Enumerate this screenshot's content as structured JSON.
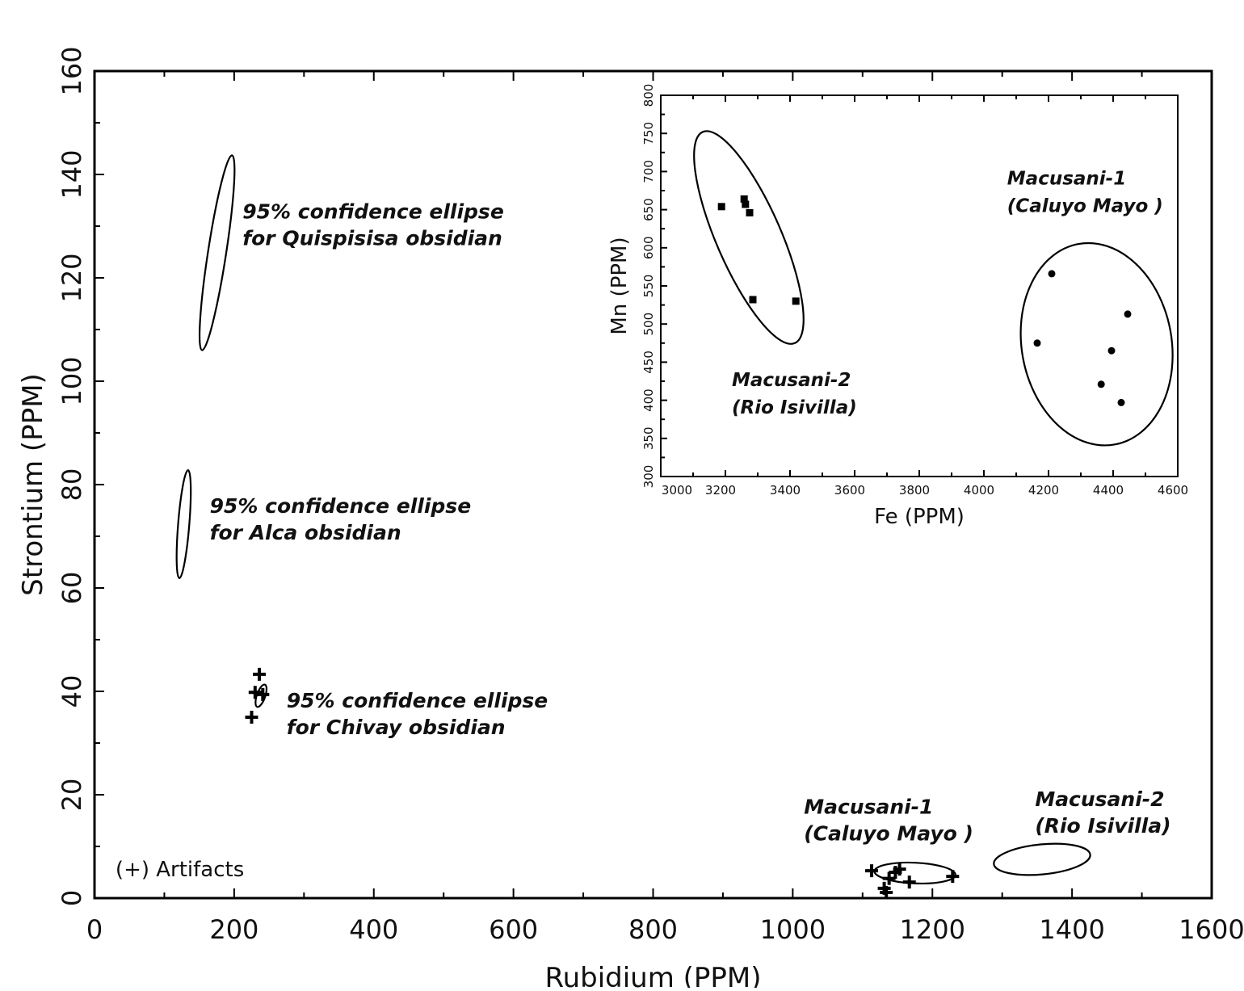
{
  "chart_data": [
    {
      "type": "scatter",
      "title": "",
      "xlabel": "Rubidium (PPM)",
      "ylabel": "Strontium (PPM)",
      "xlim": [
        0,
        1600
      ],
      "ylim": [
        0,
        160
      ],
      "xticks": [
        "0",
        "200",
        "400",
        "600",
        "800",
        "1000",
        "1200",
        "1400",
        "1600"
      ],
      "yticks": [
        "0",
        "20",
        "40",
        "60",
        "80",
        "100",
        "120",
        "140",
        "160"
      ],
      "grid": false,
      "legend": {
        "label": "(+) Artifacts",
        "placement": "bottom-left",
        "x": 30,
        "y": 4.2
      },
      "series": [
        {
          "name": "Artifacts",
          "marker": "plus",
          "points": [
            [
              236,
              43.3
            ],
            [
              230,
              39.8
            ],
            [
              241,
              39.4
            ],
            [
              225,
              35.0
            ],
            [
              1113,
              5.3
            ],
            [
              1138,
              3.8
            ],
            [
              1147,
              5.0
            ],
            [
              1153,
              5.6
            ],
            [
              1131,
              1.9
            ],
            [
              1134,
              1.1
            ],
            [
              1167,
              3.1
            ],
            [
              1229,
              4.2
            ]
          ]
        }
      ],
      "ellipses": [
        {
          "name": "Quispisisa",
          "p1": [
            197,
            143.7
          ],
          "p2": [
            154,
            106
          ],
          "minor": 13
        },
        {
          "name": "Alca",
          "p1": [
            134,
            82.8
          ],
          "p2": [
            121.5,
            61.9
          ],
          "minor": 8
        },
        {
          "name": "Chivay",
          "p1": [
            244,
            41.3
          ],
          "p2": [
            233,
            37
          ],
          "minor": 6
        },
        {
          "name": "Macusani-1",
          "p1": [
            1117,
            5.2
          ],
          "p2": [
            1233,
            4.5
          ],
          "minor": 2
        },
        {
          "name": "Macusani-2",
          "p1": [
            1288,
            6.6
          ],
          "p2": [
            1426,
            8.4
          ],
          "minor": 2.9
        }
      ],
      "annotations": [
        {
          "lines": [
            "95% confidence ellipse",
            "for Quispisisa obsidian"
          ],
          "x": 212,
          "y": 131.5
        },
        {
          "lines": [
            "95% confidence ellipse",
            "for Alca obsidian"
          ],
          "x": 165,
          "y": 74.5
        },
        {
          "lines": [
            "95% confidence ellipse",
            "for Chivay obsidian"
          ],
          "x": 275,
          "y": 36.9
        },
        {
          "lines": [
            "Macusani-1",
            "(Caluyo Mayo )"
          ],
          "x": 1016,
          "y": 16.3
        },
        {
          "lines": [
            "Macusani-2",
            "(Rio Isivilla)"
          ],
          "x": 1347,
          "y": 17.8
        }
      ]
    },
    {
      "type": "scatter",
      "title": "",
      "xlabel": "Fe (PPM)",
      "ylabel": "Mn (PPM)",
      "xlim": [
        3000,
        4600
      ],
      "ylim": [
        300,
        800
      ],
      "xticks": [
        "3000",
        "3200",
        "3400",
        "3600",
        "3800",
        "4000",
        "4200",
        "4400",
        "4600"
      ],
      "yticks": [
        "300",
        "350",
        "400",
        "450",
        "500",
        "550",
        "600",
        "650",
        "700",
        "750",
        "800"
      ],
      "grid": false,
      "series": [
        {
          "name": "Macusani-2 (Rio Isivilla)",
          "marker": "square",
          "points": [
            [
              3188,
              654
            ],
            [
              3258,
              664
            ],
            [
              3262,
              657
            ],
            [
              3275,
              646
            ],
            [
              3285,
              532
            ],
            [
              3418,
              530
            ]
          ]
        },
        {
          "name": "Macusani-1 (Caluyo Mayo)",
          "marker": "circle",
          "points": [
            [
              4165,
              475
            ],
            [
              4210,
              566
            ],
            [
              4445,
              513
            ],
            [
              4395,
              465
            ],
            [
              4363,
              421
            ],
            [
              4425,
              397
            ]
          ]
        }
      ],
      "ellipses": [
        {
          "name": "Macusani-2",
          "p1": [
            3130,
            752
          ],
          "p2": [
            3415,
            475
          ],
          "minor": 100
        },
        {
          "name": "Macusani-1",
          "p1": [
            4293,
            605
          ],
          "p2": [
            4405,
            342
          ],
          "minor": 232
        }
      ],
      "annotations": [
        {
          "lines": [
            "Macusani-1",
            "(Caluyo Mayo )"
          ],
          "x": 4072,
          "y": 683
        },
        {
          "lines": [
            "Macusani-2",
            "(Rio Isivilla)"
          ],
          "x": 3220,
          "y": 418.6
        }
      ]
    }
  ]
}
